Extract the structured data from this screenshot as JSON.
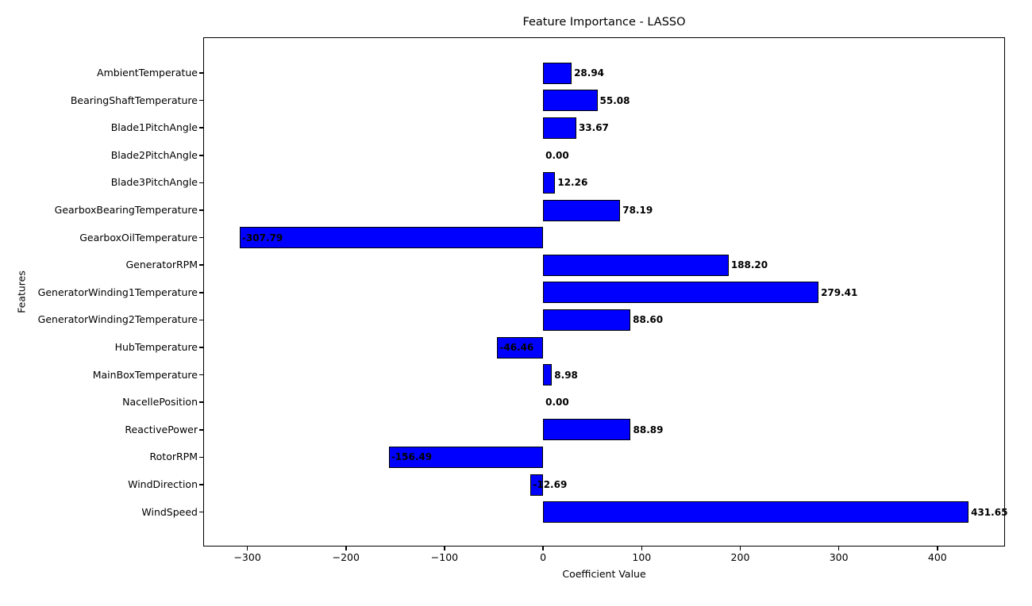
{
  "chart_data": {
    "type": "bar",
    "orientation": "horizontal",
    "title": "Feature Importance - LASSO",
    "xlabel": "Coefficient Value",
    "ylabel": "Features",
    "categories": [
      "AmbientTemperatue",
      "BearingShaftTemperature",
      "Blade1PitchAngle",
      "Blade2PitchAngle",
      "Blade3PitchAngle",
      "GearboxBearingTemperature",
      "GearboxOilTemperature",
      "GeneratorRPM",
      "GeneratorWinding1Temperature",
      "GeneratorWinding2Temperature",
      "HubTemperature",
      "MainBoxTemperature",
      "NacellePosition",
      "ReactivePower",
      "RotorRPM",
      "WindDirection",
      "WindSpeed"
    ],
    "values": [
      28.94,
      55.08,
      33.67,
      0.0,
      12.26,
      78.19,
      -307.79,
      188.2,
      279.41,
      88.6,
      -46.46,
      8.98,
      0.0,
      88.89,
      -156.49,
      -12.69,
      431.65
    ],
    "value_labels": [
      "28.94",
      "55.08",
      "33.67",
      "0.00",
      "12.26",
      "78.19",
      "-307.79",
      "188.20",
      "279.41",
      "88.60",
      "-46.46",
      "8.98",
      "0.00",
      "88.89",
      "-156.49",
      "-12.69",
      "431.65"
    ],
    "xticks": [
      -300,
      -200,
      -100,
      0,
      100,
      200,
      300,
      400
    ],
    "xtick_labels": [
      "−300",
      "−200",
      "−100",
      "0",
      "100",
      "200",
      "300",
      "400"
    ],
    "xlim": [
      -344.8,
      468.6
    ],
    "grid": false,
    "legend": "none",
    "bar_color": "#0000ff",
    "bar_edge_color": "#000000",
    "text_color": "#000000",
    "background_color": "#ffffff"
  }
}
